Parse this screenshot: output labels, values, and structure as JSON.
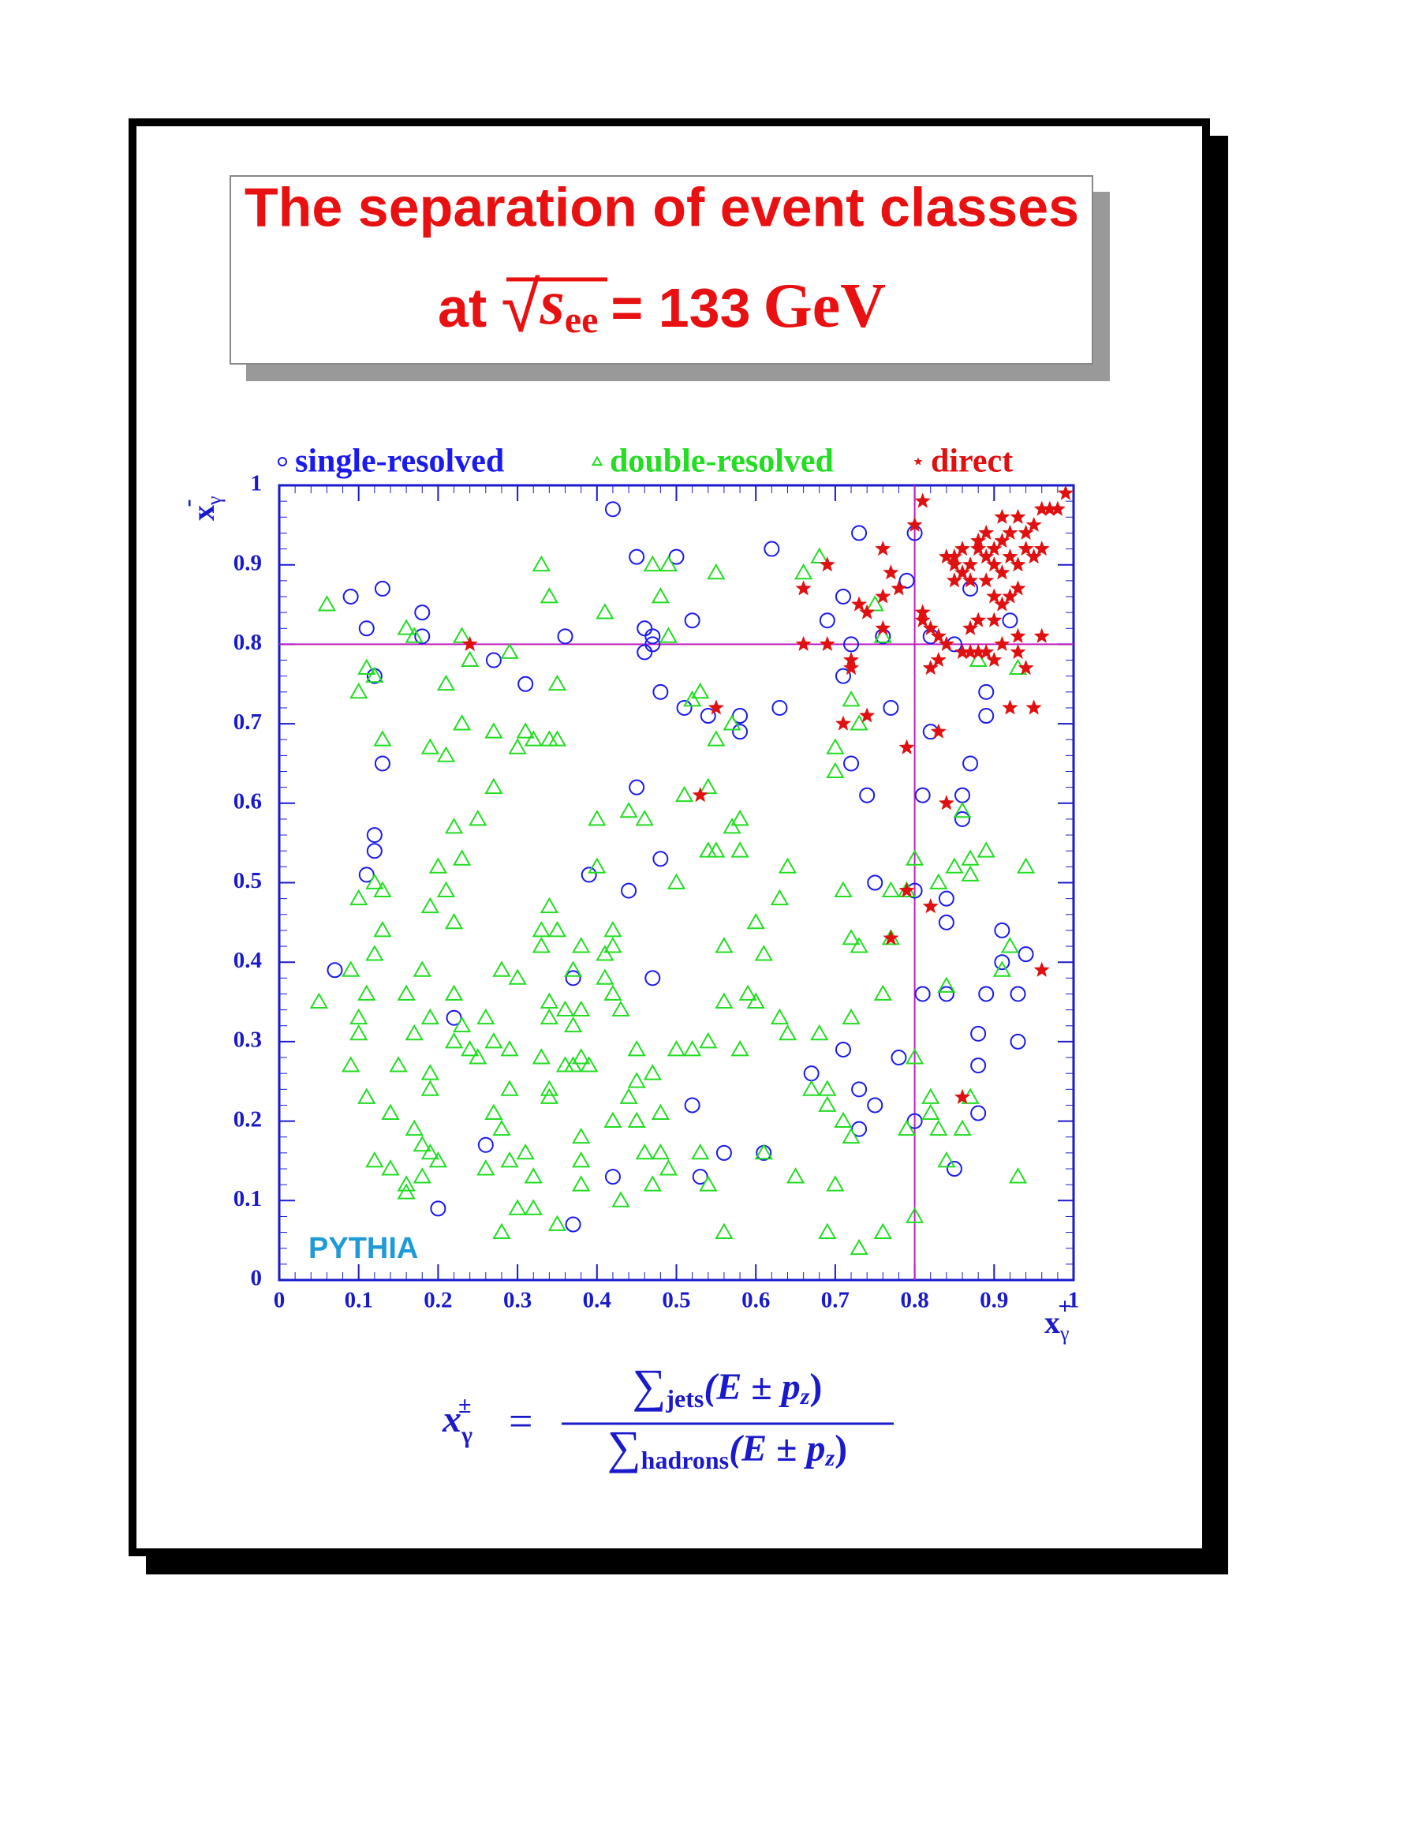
{
  "chart_data": {
    "type": "scatter",
    "title": "The separation of event classes",
    "subtitle": {
      "prefix": "at",
      "root": "√",
      "s": "s",
      "sub": "ee",
      "rest": "= 133",
      "unit": "GeV"
    },
    "xlabel": {
      "base": "x",
      "sub": "γ",
      "sup": "+"
    },
    "ylabel": {
      "base": "x",
      "sub": "γ",
      "sup": "-"
    },
    "annotation": "PYTHIA",
    "formula": {
      "lhs": "x",
      "lhs_sub": "γ",
      "lhs_sup": "±",
      "eq": "=",
      "num_sum": "∑",
      "num_sub": "jets",
      "num_expr": "(E ± p",
      "num_z": "z",
      "num_close": ")",
      "den_sum": "∑",
      "den_sub": "hadrons",
      "den_expr": "(E ± p",
      "den_z": "z",
      "den_close": ")"
    },
    "xlim": [
      0,
      1
    ],
    "ylim": [
      0,
      1
    ],
    "xticks": [
      0,
      0.1,
      0.2,
      0.3,
      0.4,
      0.5,
      0.6,
      0.7,
      0.8,
      0.9,
      1
    ],
    "yticks": [
      0,
      0.1,
      0.2,
      0.3,
      0.4,
      0.5,
      0.6,
      0.7,
      0.8,
      0.9,
      1
    ],
    "cuts": {
      "x": 0.8,
      "y": 0.8,
      "color": "#c020c0"
    },
    "axis_color": "#1a1acc",
    "series": [
      {
        "name": "single-resolved",
        "color": "#1a1aee",
        "marker": "circle",
        "x": [
          0.09,
          0.11,
          0.13,
          0.12,
          0.18,
          0.18,
          0.13,
          0.12,
          0.12,
          0.11,
          0.07,
          0.22,
          0.2,
          0.26,
          0.27,
          0.31,
          0.36,
          0.42,
          0.45,
          0.5,
          0.46,
          0.47,
          0.47,
          0.46,
          0.48,
          0.51,
          0.52,
          0.54,
          0.58,
          0.58,
          0.62,
          0.63,
          0.45,
          0.48,
          0.44,
          0.39,
          0.37,
          0.47,
          0.52,
          0.53,
          0.56,
          0.61,
          0.42,
          0.37,
          0.73,
          0.69,
          0.71,
          0.72,
          0.71,
          0.77,
          0.72,
          0.74,
          0.75,
          0.76,
          0.8,
          0.79,
          0.82,
          0.85,
          0.87,
          0.89,
          0.89,
          0.82,
          0.87,
          0.86,
          0.81,
          0.86,
          0.8,
          0.84,
          0.84,
          0.91,
          0.91,
          0.94,
          0.93,
          0.89,
          0.81,
          0.84,
          0.88,
          0.93,
          0.88,
          0.78,
          0.71,
          0.67,
          0.73,
          0.75,
          0.73,
          0.8,
          0.88,
          0.85,
          0.92
        ],
        "y": [
          0.86,
          0.82,
          0.87,
          0.76,
          0.84,
          0.81,
          0.65,
          0.56,
          0.54,
          0.51,
          0.39,
          0.33,
          0.09,
          0.17,
          0.78,
          0.75,
          0.81,
          0.97,
          0.91,
          0.91,
          0.82,
          0.81,
          0.8,
          0.79,
          0.74,
          0.72,
          0.83,
          0.71,
          0.71,
          0.69,
          0.92,
          0.72,
          0.62,
          0.53,
          0.49,
          0.51,
          0.38,
          0.38,
          0.22,
          0.13,
          0.16,
          0.16,
          0.13,
          0.07,
          0.94,
          0.83,
          0.86,
          0.8,
          0.76,
          0.72,
          0.65,
          0.61,
          0.5,
          0.81,
          0.94,
          0.88,
          0.81,
          0.8,
          0.87,
          0.74,
          0.71,
          0.69,
          0.65,
          0.61,
          0.61,
          0.58,
          0.49,
          0.48,
          0.45,
          0.44,
          0.4,
          0.41,
          0.36,
          0.36,
          0.36,
          0.36,
          0.31,
          0.3,
          0.27,
          0.28,
          0.29,
          0.26,
          0.24,
          0.22,
          0.19,
          0.2,
          0.21,
          0.14,
          0.83
        ]
      },
      {
        "name": "double-resolved",
        "color": "#22dd22",
        "marker": "triangle",
        "x": [
          0.06,
          0.1,
          0.11,
          0.12,
          0.13,
          0.16,
          0.17,
          0.19,
          0.21,
          0.21,
          0.23,
          0.24,
          0.22,
          0.23,
          0.25,
          0.23,
          0.27,
          0.29,
          0.27,
          0.3,
          0.31,
          0.32,
          0.34,
          0.35,
          0.33,
          0.34,
          0.35,
          0.41,
          0.47,
          0.48,
          0.49,
          0.49,
          0.52,
          0.53,
          0.55,
          0.55,
          0.57,
          0.58,
          0.57,
          0.54,
          0.54,
          0.51,
          0.46,
          0.44,
          0.4,
          0.4,
          0.5,
          0.55,
          0.58,
          0.6,
          0.63,
          0.64,
          0.56,
          0.61,
          0.34,
          0.35,
          0.33,
          0.33,
          0.38,
          0.41,
          0.42,
          0.42,
          0.37,
          0.41,
          0.42,
          0.43,
          0.38,
          0.36,
          0.34,
          0.34,
          0.37,
          0.05,
          0.09,
          0.1,
          0.12,
          0.13,
          0.13,
          0.12,
          0.11,
          0.1,
          0.1,
          0.09,
          0.11,
          0.12,
          0.14,
          0.16,
          0.16,
          0.15,
          0.16,
          0.17,
          0.14,
          0.17,
          0.18,
          0.19,
          0.2,
          0.18,
          0.19,
          0.19,
          0.19,
          0.18,
          0.19,
          0.2,
          0.21,
          0.22,
          0.22,
          0.23,
          0.22,
          0.24,
          0.25,
          0.26,
          0.27,
          0.28,
          0.3,
          0.29,
          0.29,
          0.27,
          0.28,
          0.29,
          0.26,
          0.28,
          0.3,
          0.32,
          0.32,
          0.31,
          0.34,
          0.34,
          0.33,
          0.36,
          0.37,
          0.38,
          0.39,
          0.38,
          0.38,
          0.38,
          0.35,
          0.42,
          0.43,
          0.44,
          0.45,
          0.45,
          0.47,
          0.45,
          0.46,
          0.47,
          0.48,
          0.48,
          0.49,
          0.5,
          0.52,
          0.54,
          0.53,
          0.54,
          0.56,
          0.56,
          0.59,
          0.6,
          0.58,
          0.61,
          0.63,
          0.64,
          0.65,
          0.66,
          0.68,
          0.7,
          0.7,
          0.71,
          0.72,
          0.72,
          0.73,
          0.75,
          0.76,
          0.77,
          0.77,
          0.76,
          0.79,
          0.8,
          0.8,
          0.72,
          0.68,
          0.67,
          0.69,
          0.69,
          0.71,
          0.72,
          0.7,
          0.69,
          0.73,
          0.76,
          0.8,
          0.79,
          0.82,
          0.82,
          0.83,
          0.84,
          0.84,
          0.83,
          0.85,
          0.87,
          0.87,
          0.86,
          0.89,
          0.94,
          0.91,
          0.92,
          0.87,
          0.86,
          0.93,
          0.93,
          0.88,
          0.73
        ],
        "y": [
          0.85,
          0.74,
          0.77,
          0.76,
          0.68,
          0.82,
          0.81,
          0.67,
          0.66,
          0.75,
          0.81,
          0.78,
          0.57,
          0.53,
          0.58,
          0.7,
          0.69,
          0.79,
          0.62,
          0.67,
          0.69,
          0.68,
          0.68,
          0.68,
          0.9,
          0.86,
          0.75,
          0.84,
          0.9,
          0.86,
          0.9,
          0.81,
          0.73,
          0.74,
          0.89,
          0.68,
          0.7,
          0.58,
          0.57,
          0.62,
          0.54,
          0.61,
          0.58,
          0.59,
          0.58,
          0.52,
          0.5,
          0.54,
          0.54,
          0.45,
          0.48,
          0.52,
          0.42,
          0.41,
          0.47,
          0.44,
          0.44,
          0.42,
          0.42,
          0.41,
          0.42,
          0.44,
          0.39,
          0.38,
          0.36,
          0.34,
          0.34,
          0.34,
          0.35,
          0.33,
          0.32,
          0.35,
          0.39,
          0.48,
          0.5,
          0.49,
          0.44,
          0.41,
          0.36,
          0.33,
          0.31,
          0.27,
          0.23,
          0.15,
          0.14,
          0.12,
          0.11,
          0.27,
          0.36,
          0.31,
          0.21,
          0.19,
          0.17,
          0.16,
          0.15,
          0.13,
          0.24,
          0.26,
          0.33,
          0.39,
          0.47,
          0.52,
          0.49,
          0.45,
          0.36,
          0.32,
          0.3,
          0.29,
          0.28,
          0.33,
          0.3,
          0.39,
          0.38,
          0.29,
          0.24,
          0.21,
          0.19,
          0.15,
          0.14,
          0.06,
          0.09,
          0.09,
          0.13,
          0.16,
          0.24,
          0.23,
          0.28,
          0.27,
          0.27,
          0.28,
          0.27,
          0.18,
          0.15,
          0.12,
          0.07,
          0.2,
          0.1,
          0.23,
          0.25,
          0.29,
          0.26,
          0.2,
          0.16,
          0.12,
          0.16,
          0.21,
          0.14,
          0.29,
          0.29,
          0.3,
          0.16,
          0.12,
          0.06,
          0.35,
          0.36,
          0.35,
          0.29,
          0.16,
          0.33,
          0.31,
          0.13,
          0.89,
          0.91,
          0.64,
          0.67,
          0.49,
          0.43,
          0.73,
          0.7,
          0.85,
          0.81,
          0.49,
          0.43,
          0.36,
          0.49,
          0.53,
          0.28,
          0.33,
          0.31,
          0.24,
          0.24,
          0.22,
          0.2,
          0.18,
          0.12,
          0.06,
          0.04,
          0.06,
          0.08,
          0.19,
          0.23,
          0.21,
          0.19,
          0.15,
          0.37,
          0.5,
          0.52,
          0.51,
          0.53,
          0.59,
          0.54,
          0.52,
          0.39,
          0.42,
          0.23,
          0.19,
          0.13,
          0.77,
          0.78,
          0.42
        ]
      },
      {
        "name": "direct",
        "color": "#e01010",
        "marker": "star",
        "x": [
          0.24,
          0.55,
          0.53,
          0.66,
          0.66,
          0.69,
          0.69,
          0.71,
          0.72,
          0.72,
          0.74,
          0.74,
          0.73,
          0.76,
          0.76,
          0.76,
          0.78,
          0.77,
          0.79,
          0.79,
          0.8,
          0.81,
          0.81,
          0.81,
          0.82,
          0.82,
          0.83,
          0.83,
          0.84,
          0.83,
          0.84,
          0.82,
          0.77,
          0.86,
          0.86,
          0.87,
          0.87,
          0.88,
          0.88,
          0.89,
          0.9,
          0.91,
          0.9,
          0.91,
          0.92,
          0.93,
          0.94,
          0.93,
          0.96,
          0.92,
          0.95,
          0.96,
          0.85,
          0.85,
          0.85,
          0.86,
          0.86,
          0.87,
          0.88,
          0.88,
          0.89,
          0.89,
          0.89,
          0.9,
          0.9,
          0.91,
          0.91,
          0.91,
          0.92,
          0.92,
          0.93,
          0.93,
          0.94,
          0.94,
          0.95,
          0.95,
          0.96,
          0.96,
          0.97,
          0.98,
          0.99,
          0.87,
          0.84,
          0.93,
          0.9
        ],
        "y": [
          0.8,
          0.72,
          0.61,
          0.87,
          0.8,
          0.8,
          0.9,
          0.7,
          0.78,
          0.77,
          0.71,
          0.84,
          0.85,
          0.82,
          0.86,
          0.92,
          0.87,
          0.89,
          0.67,
          0.49,
          0.95,
          0.98,
          0.84,
          0.83,
          0.82,
          0.77,
          0.78,
          0.81,
          0.8,
          0.69,
          0.6,
          0.47,
          0.43,
          0.23,
          0.79,
          0.79,
          0.82,
          0.83,
          0.79,
          0.79,
          0.78,
          0.8,
          0.83,
          0.85,
          0.86,
          0.79,
          0.77,
          0.81,
          0.81,
          0.72,
          0.72,
          0.39,
          0.88,
          0.9,
          0.91,
          0.92,
          0.89,
          0.9,
          0.92,
          0.93,
          0.91,
          0.88,
          0.94,
          0.92,
          0.9,
          0.93,
          0.96,
          0.89,
          0.91,
          0.94,
          0.96,
          0.9,
          0.92,
          0.94,
          0.95,
          0.91,
          0.92,
          0.97,
          0.97,
          0.97,
          0.99,
          0.88,
          0.91,
          0.87,
          0.86
        ]
      }
    ]
  }
}
